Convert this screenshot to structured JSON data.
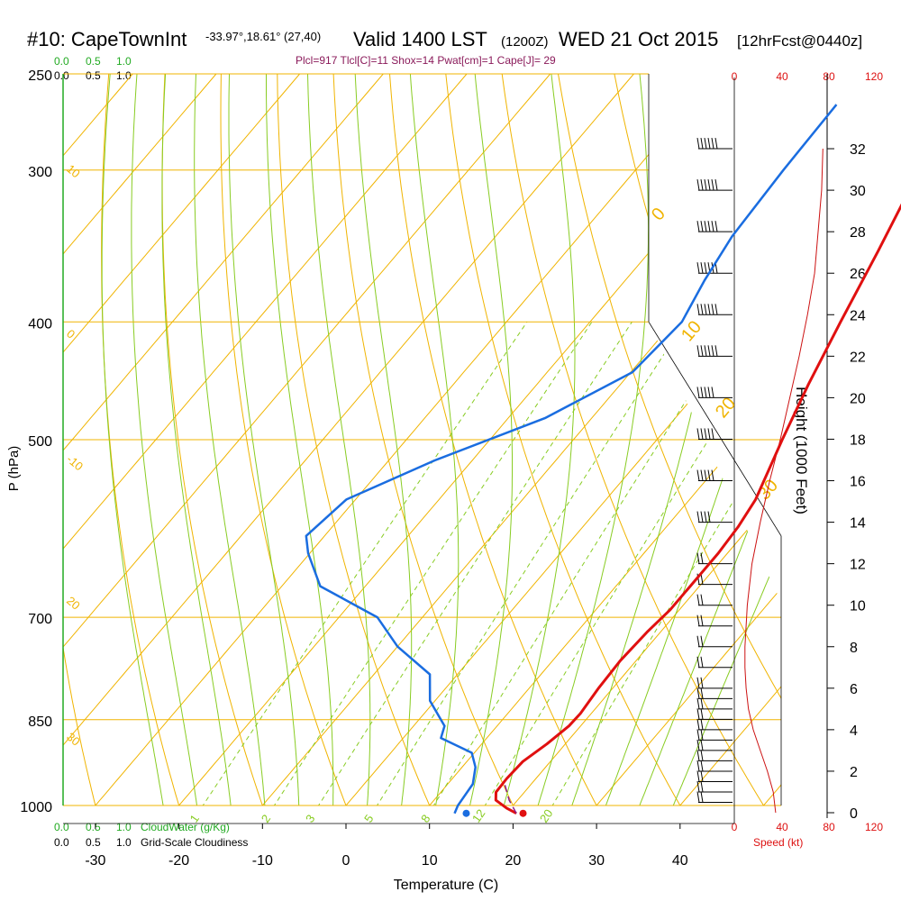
{
  "header": {
    "title": "#10: CapeTownInt",
    "coords": "-33.97°,18.61° (27,40)",
    "valid": "Valid 1400 LST",
    "zulu": "(1200Z)",
    "date": "WED 21 Oct 2015",
    "forecast": "[12hrFcst@0440z]",
    "indices": "Plcl=917 Tlcl[C]=11 Shox=14 Pwat[cm]=1 Cape[J]= 29"
  },
  "labels": {
    "pressure_axis": "P (hPa)",
    "temperature_axis": "Temperature (C)",
    "height_axis": "Height (1000 Feet)",
    "cloud_water": "CloudWater (g/Kg)",
    "cloudiness": "Grid-Scale Cloudiness",
    "speed": "Speed (kt)"
  },
  "scales": {
    "top_green": [
      "0.0",
      "0.5",
      "1.0"
    ],
    "top_black": [
      "0.0",
      "0.5",
      "1.0"
    ],
    "bottom_green": [
      "0.0",
      "0.5",
      "1.0"
    ],
    "bottom_black": [
      "0.0",
      "0.5",
      "1.0"
    ],
    "speed_ticks": [
      "0",
      "40",
      "80",
      "120"
    ]
  },
  "colors": {
    "temperature": "#e01010",
    "dewpoint": "#1a6de0",
    "isotherm": "#f0b400",
    "adiabat": "#f0b400",
    "moist_adiabat": "#88cc22",
    "mixing_ratio": "#88cc22",
    "cloud_green": "#22aa22",
    "speed_profile": "#cc1111",
    "parcel": "#8a1a8a"
  },
  "chart_data": {
    "type": "line",
    "plot_type": "skew-T log-P",
    "xlabel": "Temperature (C)",
    "ylabel": "P (hPa)",
    "y2label": "Height (1000 Feet)",
    "xlim": [
      -35,
      45
    ],
    "ylim": [
      1030,
      250
    ],
    "y_scale": "log",
    "x_ticks": [
      -30,
      -20,
      -10,
      0,
      10,
      20,
      30,
      40
    ],
    "pressure_ticks": [
      1000,
      850,
      700,
      500,
      400,
      300,
      250
    ],
    "height_ticks": [
      0,
      2,
      4,
      6,
      8,
      10,
      12,
      14,
      16,
      18,
      20,
      22,
      24,
      26,
      28,
      30,
      32
    ],
    "dry_adiabat_labels": [
      {
        "theta": 10,
        "p": 300
      },
      {
        "theta": 0,
        "p": 410
      },
      {
        "theta": -10,
        "p": 520
      },
      {
        "theta": 20,
        "p": 680
      },
      {
        "theta": 30,
        "p": 880
      }
    ],
    "isotherm_labels": [
      "0",
      "10",
      "20",
      "30"
    ],
    "mixing_ratio_labels": [
      "1",
      "2",
      "3",
      "5",
      "8",
      "12",
      "20"
    ],
    "mixing_ratio_values": [
      1,
      2,
      3,
      5,
      8,
      12,
      20
    ],
    "series": [
      {
        "name": "temperature",
        "points": [
          {
            "p": 1015,
            "t": 21.2
          },
          {
            "p": 1005,
            "t": 19.5
          },
          {
            "p": 990,
            "t": 17.4
          },
          {
            "p": 975,
            "t": 16.6
          },
          {
            "p": 950,
            "t": 16.5
          },
          {
            "p": 920,
            "t": 16.7
          },
          {
            "p": 890,
            "t": 17.8
          },
          {
            "p": 860,
            "t": 18.6
          },
          {
            "p": 840,
            "t": 18.7
          },
          {
            "p": 800,
            "t": 18.3
          },
          {
            "p": 760,
            "t": 18.1
          },
          {
            "p": 720,
            "t": 18.4
          },
          {
            "p": 690,
            "t": 18.9
          },
          {
            "p": 660,
            "t": 18.9
          },
          {
            "p": 620,
            "t": 18.9
          },
          {
            "p": 590,
            "t": 18.6
          },
          {
            "p": 560,
            "t": 17.9
          },
          {
            "p": 530,
            "t": 16.5
          },
          {
            "p": 500,
            "t": 15.0
          },
          {
            "p": 450,
            "t": 12.5
          },
          {
            "p": 400,
            "t": 10.0
          },
          {
            "p": 350,
            "t": 7.3
          },
          {
            "p": 300,
            "t": 4.0
          },
          {
            "p": 265,
            "t": 1.2
          }
        ]
      },
      {
        "name": "dewpoint",
        "points": [
          {
            "p": 1015,
            "t": 13.8
          },
          {
            "p": 1000,
            "t": 13.4
          },
          {
            "p": 960,
            "t": 13.0
          },
          {
            "p": 930,
            "t": 11.6
          },
          {
            "p": 905,
            "t": 9.7
          },
          {
            "p": 880,
            "t": 4.5
          },
          {
            "p": 860,
            "t": 3.7
          },
          {
            "p": 820,
            "t": -0.6
          },
          {
            "p": 780,
            "t": -3.3
          },
          {
            "p": 740,
            "t": -10.0
          },
          {
            "p": 700,
            "t": -15.4
          },
          {
            "p": 660,
            "t": -25.4
          },
          {
            "p": 620,
            "t": -30.2
          },
          {
            "p": 600,
            "t": -32.2
          },
          {
            "p": 560,
            "t": -31.1
          },
          {
            "p": 520,
            "t": -24.5
          },
          {
            "p": 480,
            "t": -15.6
          },
          {
            "p": 440,
            "t": -9.8
          },
          {
            "p": 400,
            "t": -9.0
          },
          {
            "p": 370,
            "t": -10.5
          },
          {
            "p": 340,
            "t": -11.7
          },
          {
            "p": 300,
            "t": -12.3
          },
          {
            "p": 265,
            "t": -12.6
          }
        ]
      },
      {
        "name": "parcel",
        "points": [
          {
            "p": 1015,
            "t": 21.2
          },
          {
            "p": 990,
            "t": 19.0
          },
          {
            "p": 960,
            "t": 16.8
          }
        ]
      }
    ],
    "surface_markers": {
      "temperature": 22,
      "dewpoint": 15.2
    },
    "wind_speed_profile": [
      {
        "h": 0,
        "kt": 35
      },
      {
        "h": 1,
        "kt": 33
      },
      {
        "h": 2,
        "kt": 28
      },
      {
        "h": 3,
        "kt": 22
      },
      {
        "h": 4,
        "kt": 16
      },
      {
        "h": 5,
        "kt": 12
      },
      {
        "h": 6,
        "kt": 10
      },
      {
        "h": 7,
        "kt": 9
      },
      {
        "h": 8,
        "kt": 9
      },
      {
        "h": 10,
        "kt": 11
      },
      {
        "h": 12,
        "kt": 15
      },
      {
        "h": 14,
        "kt": 22
      },
      {
        "h": 16,
        "kt": 30
      },
      {
        "h": 18,
        "kt": 39
      },
      {
        "h": 20,
        "kt": 47
      },
      {
        "h": 22,
        "kt": 55
      },
      {
        "h": 24,
        "kt": 62
      },
      {
        "h": 26,
        "kt": 68
      },
      {
        "h": 28,
        "kt": 71
      },
      {
        "h": 30,
        "kt": 74
      },
      {
        "h": 32,
        "kt": 75
      }
    ],
    "wind_barbs": [
      {
        "h": 0.5,
        "kt": 15
      },
      {
        "h": 1.0,
        "kt": 15
      },
      {
        "h": 1.5,
        "kt": 15
      },
      {
        "h": 2.0,
        "kt": 15
      },
      {
        "h": 2.5,
        "kt": 15
      },
      {
        "h": 3.0,
        "kt": 15
      },
      {
        "h": 3.5,
        "kt": 15
      },
      {
        "h": 4.0,
        "kt": 15
      },
      {
        "h": 4.5,
        "kt": 15
      },
      {
        "h": 5.0,
        "kt": 15
      },
      {
        "h": 5.5,
        "kt": 15
      },
      {
        "h": 6.0,
        "kt": 15
      },
      {
        "h": 7,
        "kt": 15
      },
      {
        "h": 8,
        "kt": 15
      },
      {
        "h": 9,
        "kt": 15
      },
      {
        "h": 10,
        "kt": 15
      },
      {
        "h": 11,
        "kt": 15
      },
      {
        "h": 12,
        "kt": 15
      },
      {
        "h": 14,
        "kt": 35
      },
      {
        "h": 16,
        "kt": 45
      },
      {
        "h": 18,
        "kt": 50
      },
      {
        "h": 20,
        "kt": 50
      },
      {
        "h": 22,
        "kt": 55
      },
      {
        "h": 24,
        "kt": 60
      },
      {
        "h": 26,
        "kt": 65
      },
      {
        "h": 28,
        "kt": 65
      },
      {
        "h": 30,
        "kt": 70
      },
      {
        "h": 32,
        "kt": 70
      }
    ]
  }
}
